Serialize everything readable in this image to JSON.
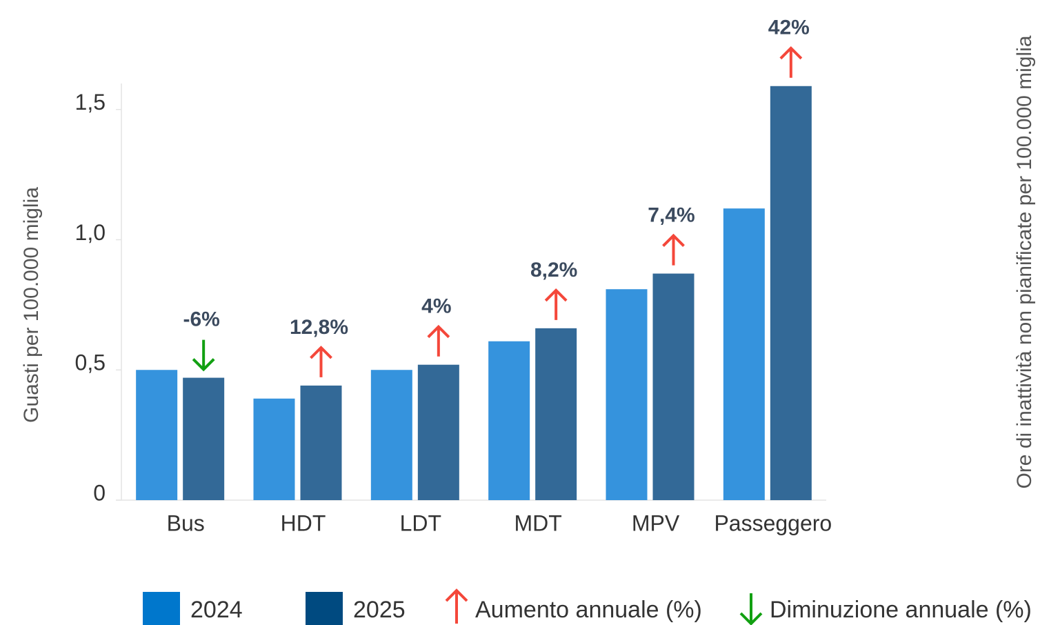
{
  "chart_data": {
    "type": "bar",
    "y_label": "Guasti per 100.000 miglia",
    "y2_label": "Ore di inattività non pianificate per 100.000 miglia",
    "categories": [
      "Bus",
      "HDT",
      "LDT",
      "MDT",
      "MPV",
      "Passeggero"
    ],
    "series": [
      {
        "name": "2024",
        "color": "#3593dd",
        "legend_color": "#0077cc",
        "values": [
          0.5,
          0.39,
          0.5,
          0.61,
          0.81,
          1.12
        ]
      },
      {
        "name": "2025",
        "color": "#336997",
        "legend_color": "#004a80",
        "values": [
          0.47,
          0.44,
          0.52,
          0.66,
          0.87,
          1.59
        ]
      }
    ],
    "changes": {
      "values": [
        -6,
        12.8,
        4,
        8.2,
        7.4,
        42
      ],
      "value_labels": [
        "-6%",
        "12,8%",
        "4%",
        "8,2%",
        "7,4%",
        "42%"
      ]
    },
    "increase_label": "Aumento annuale (%)",
    "increase_color": "#f4473a",
    "decrease_label": "Diminuzione annuale (%)",
    "decrease_color": "#12a012",
    "ylim": [
      0,
      1.6
    ],
    "yticks": [
      0,
      {
        "value": 0.5,
        "label": "0,5"
      },
      {
        "value": 1,
        "label": "1,0"
      },
      {
        "value": 1.5,
        "label": "1,5"
      }
    ]
  }
}
